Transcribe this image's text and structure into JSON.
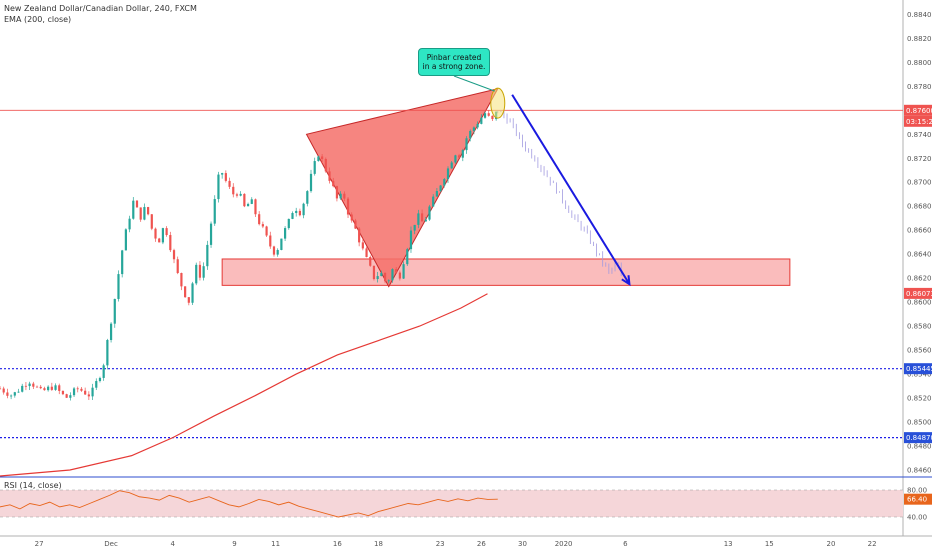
{
  "header": {
    "symbol_line": "New Zealand Dollar/Canadian Dollar, 240, FXCM",
    "indicator_line": "EMA (200, close)"
  },
  "rsi": {
    "label": "RSI (14, close)",
    "upper_label": "80.00",
    "current_label": "66.40",
    "lower_label": "40.00",
    "upper": 80,
    "lower": 40,
    "current": 66.4,
    "line_color": "#e8651c",
    "band_color": "#f5d6d9"
  },
  "annotation": {
    "line1": "Pinbar created",
    "line2": "in a strong zone."
  },
  "price_tags": {
    "current_price": "0.87600",
    "countdown": "03:15:28",
    "ema_price": "0.86073",
    "level_upper": "0.85445",
    "level_lower": "0.84870"
  },
  "colors": {
    "up_candle": "#26a69a",
    "down_candle": "#ef5350",
    "ema": "#e53935",
    "zone_fill": "#f8a6a6",
    "zone_border": "#e53935",
    "pattern_fill": "#f4706a",
    "level_line": "#1e1ee8",
    "arrow": "#1a1ae0",
    "projection": "#a29be0",
    "current_tag": "#ef5350",
    "ema_tag": "#ef5350",
    "level_tag": "#2850d8"
  },
  "chart_data": {
    "type": "candlestick",
    "y_ticks": [
      "0.88400",
      "0.88200",
      "0.88000",
      "0.87800",
      "0.87600",
      "0.87400",
      "0.87200",
      "0.87000",
      "0.86800",
      "0.86600",
      "0.86400",
      "0.86200",
      "0.86000",
      "0.85800",
      "0.85600",
      "0.85400",
      "0.85200",
      "0.85000",
      "0.84800",
      "0.84600"
    ],
    "ylim": [
      0.8455,
      0.8852
    ],
    "x_ticks": [
      "27",
      "Dec",
      "4",
      "9",
      "11",
      "16",
      "18",
      "23",
      "26",
      "30",
      "2020",
      "6",
      "13",
      "15",
      "20",
      "22"
    ],
    "x_tick_positions": [
      0.5,
      4,
      7,
      10,
      12,
      15,
      17,
      20,
      22,
      24,
      26,
      29,
      34,
      36,
      39,
      41
    ],
    "xlim": [
      -1.4,
      42.5
    ],
    "price_path": [
      [
        -1.4,
        0.8528
      ],
      [
        -0.8,
        0.8522
      ],
      [
        0,
        0.8535
      ],
      [
        0.6,
        0.8525
      ],
      [
        1.2,
        0.853
      ],
      [
        1.8,
        0.852
      ],
      [
        2.4,
        0.8528
      ],
      [
        3.0,
        0.8522
      ],
      [
        3.6,
        0.8545
      ],
      [
        3.9,
        0.8575
      ],
      [
        4.2,
        0.8605
      ],
      [
        4.5,
        0.864
      ],
      [
        4.8,
        0.8665
      ],
      [
        5.1,
        0.8685
      ],
      [
        5.4,
        0.867
      ],
      [
        5.7,
        0.868
      ],
      [
        6.0,
        0.866
      ],
      [
        6.3,
        0.865
      ],
      [
        6.6,
        0.8665
      ],
      [
        6.9,
        0.8645
      ],
      [
        7.2,
        0.8625
      ],
      [
        7.5,
        0.861
      ],
      [
        7.8,
        0.86
      ],
      [
        8.1,
        0.863
      ],
      [
        8.4,
        0.862
      ],
      [
        8.7,
        0.865
      ],
      [
        9.0,
        0.868
      ],
      [
        9.3,
        0.8712
      ],
      [
        9.6,
        0.87
      ],
      [
        9.9,
        0.869
      ],
      [
        10.2,
        0.8692
      ],
      [
        10.5,
        0.8678
      ],
      [
        10.8,
        0.8685
      ],
      [
        11.1,
        0.867
      ],
      [
        11.4,
        0.866
      ],
      [
        11.7,
        0.8648
      ],
      [
        12.0,
        0.864
      ],
      [
        12.3,
        0.8655
      ],
      [
        12.6,
        0.8665
      ],
      [
        12.9,
        0.868
      ],
      [
        13.2,
        0.8675
      ],
      [
        13.5,
        0.869
      ],
      [
        13.8,
        0.871
      ],
      [
        14.1,
        0.8725
      ],
      [
        14.4,
        0.8712
      ],
      [
        14.7,
        0.87
      ],
      [
        15.0,
        0.8685
      ],
      [
        15.3,
        0.869
      ],
      [
        15.6,
        0.867
      ],
      [
        15.9,
        0.866
      ],
      [
        16.2,
        0.8645
      ],
      [
        16.5,
        0.8632
      ],
      [
        16.8,
        0.862
      ],
      [
        17.1,
        0.8625
      ],
      [
        17.4,
        0.8615
      ],
      [
        17.7,
        0.8628
      ],
      [
        18.0,
        0.862
      ],
      [
        18.3,
        0.864
      ],
      [
        18.6,
        0.866
      ],
      [
        18.9,
        0.8672
      ],
      [
        19.2,
        0.8665
      ],
      [
        19.5,
        0.868
      ],
      [
        19.8,
        0.869
      ],
      [
        20.1,
        0.8702
      ],
      [
        20.4,
        0.8712
      ],
      [
        20.7,
        0.8725
      ],
      [
        21.0,
        0.8722
      ],
      [
        21.3,
        0.8738
      ],
      [
        21.6,
        0.8745
      ],
      [
        21.9,
        0.8752
      ],
      [
        22.2,
        0.8758
      ],
      [
        22.5,
        0.875
      ],
      [
        22.8,
        0.876
      ]
    ],
    "projection_path": [
      [
        22.8,
        0.876
      ],
      [
        23.4,
        0.875
      ],
      [
        24.0,
        0.8732
      ],
      [
        24.6,
        0.872
      ],
      [
        25.2,
        0.8705
      ],
      [
        25.8,
        0.869
      ],
      [
        26.4,
        0.8672
      ],
      [
        27.0,
        0.866
      ],
      [
        27.6,
        0.8642
      ],
      [
        28.2,
        0.8625
      ],
      [
        28.6,
        0.8632
      ],
      [
        28.9,
        0.8615
      ]
    ],
    "ema_path": [
      [
        -1.4,
        0.8455
      ],
      [
        2,
        0.846
      ],
      [
        5,
        0.8472
      ],
      [
        7,
        0.8487
      ],
      [
        9,
        0.8505
      ],
      [
        11,
        0.8522
      ],
      [
        13,
        0.854
      ],
      [
        15,
        0.8556
      ],
      [
        17,
        0.8568
      ],
      [
        19,
        0.858
      ],
      [
        21,
        0.8595
      ],
      [
        22.3,
        0.8607
      ]
    ],
    "pattern": {
      "vertices": [
        [
          13.5,
          0.874
        ],
        [
          17.5,
          0.8613
        ],
        [
          22.8,
          0.8778
        ]
      ]
    },
    "zone": {
      "x": [
        9.4,
        37.0
      ],
      "y": [
        0.8614,
        0.8636
      ]
    },
    "pinbar_circle": {
      "x": 22.8,
      "y": 0.8766
    },
    "arrow": {
      "from": [
        23.5,
        0.8773
      ],
      "to": [
        29.2,
        0.8615
      ]
    },
    "horizontal_levels": [
      0.876,
      0.85445,
      0.8487
    ],
    "rsi_series": [
      55,
      58,
      52,
      60,
      57,
      62,
      55,
      58,
      54,
      60,
      66,
      72,
      79,
      76,
      70,
      68,
      65,
      72,
      68,
      62,
      66,
      70,
      64,
      58,
      55,
      60,
      66,
      63,
      58,
      62,
      56,
      52,
      48,
      44,
      40,
      43,
      46,
      42,
      48,
      52,
      56,
      60,
      58,
      62,
      66,
      63,
      67,
      64,
      68,
      66,
      66.4
    ]
  }
}
